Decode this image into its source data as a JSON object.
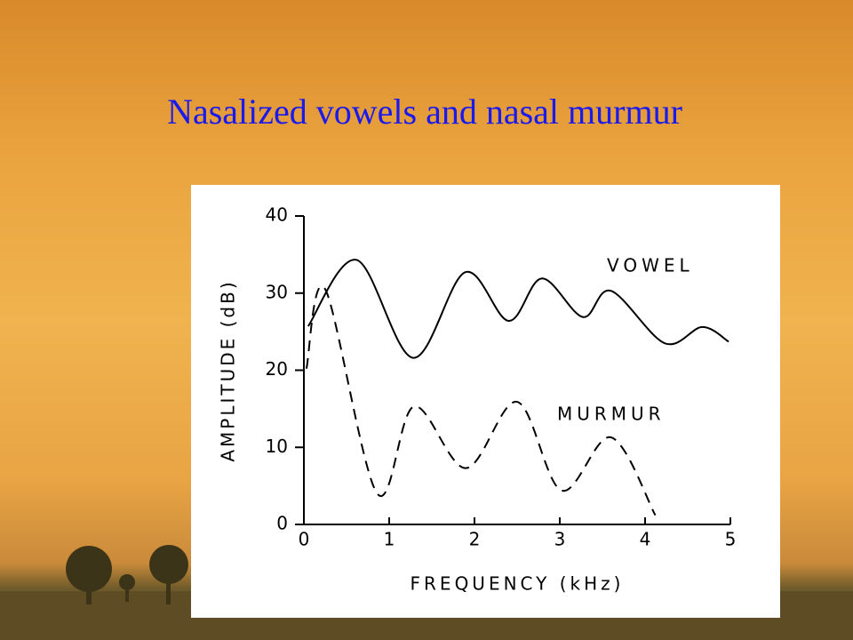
{
  "chart_data": {
    "type": "line",
    "title": "Nasalized vowels and nasal murmur",
    "x_label": "FREQUENCY (kHz)",
    "y_label": "AMPLITUDE (dB)",
    "xlim": [
      0,
      5
    ],
    "xticks": [
      0,
      1,
      2,
      3,
      4,
      5
    ],
    "ylim": [
      0,
      40
    ],
    "yticks": [
      0,
      10,
      20,
      30,
      40
    ],
    "series": [
      {
        "name": "VOWEL",
        "color": "#000000",
        "dashed": false,
        "x": [
          0.05,
          0.62,
          1.28,
          1.89,
          2.4,
          2.79,
          3.27,
          3.6,
          4.23,
          4.67,
          4.98
        ],
        "values": [
          25.7,
          34.3,
          21.6,
          32.7,
          26.4,
          31.9,
          26.9,
          30.3,
          23.5,
          25.6,
          23.7
        ]
      },
      {
        "name": "MURMUR",
        "color": "#000000",
        "dashed": true,
        "x": [
          0.03,
          0.25,
          0.86,
          1.29,
          1.9,
          2.5,
          3.02,
          3.6,
          4.12
        ],
        "values": [
          20.2,
          30.5,
          4.0,
          15.3,
          7.3,
          15.9,
          4.4,
          11.3,
          1.2
        ]
      }
    ]
  }
}
